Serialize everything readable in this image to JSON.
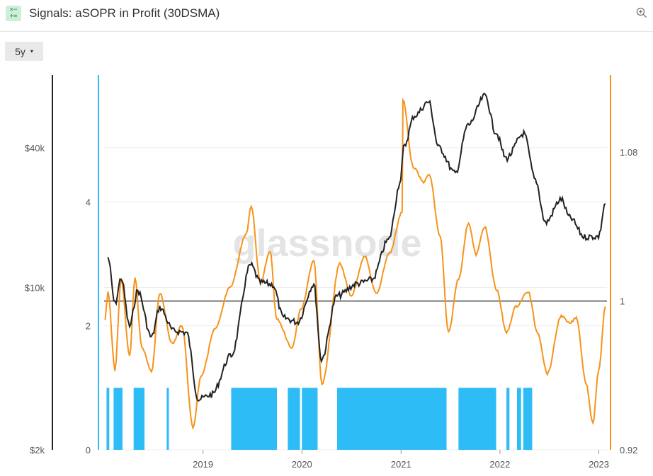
{
  "header": {
    "icon_glyphs": [
      "×−",
      "+="
    ],
    "title": "Signals: aSOPR in Profit (30DSMA)",
    "zoom_icon": "zoom-in-icon"
  },
  "controls": {
    "range_label": "5y",
    "caret": "▾"
  },
  "watermark": "glassnode",
  "colors": {
    "price": "#222222",
    "asopr": "#f7931a",
    "signal": "#2ebcf7",
    "price_axis": "#222222",
    "signal_axis": "#2ebcf7",
    "asopr_axis": "#f7931a",
    "baseline": "#777777"
  },
  "chart_data": {
    "type": "line",
    "x_ticks": [
      "2019",
      "2020",
      "2021",
      "2022",
      "2023"
    ],
    "x_range": [
      "2018-01-01",
      "2023-01-31"
    ],
    "y_axes": {
      "price": {
        "scale": "log",
        "range": [
          2000,
          80000
        ],
        "ticks": [
          "$2k",
          "$10k",
          "$40k"
        ]
      },
      "signal": {
        "scale": "linear",
        "range": [
          0,
          6
        ],
        "ticks": [
          "0",
          "2",
          "4"
        ]
      },
      "asopr": {
        "scale": "linear",
        "range": [
          0.92,
          1.12
        ],
        "ticks": [
          "0.92",
          "1",
          "1.08"
        ]
      }
    },
    "baseline": {
      "axis": "asopr",
      "value": 1
    },
    "series": [
      {
        "axis": "price",
        "points": [
          [
            "2018-01-15",
            13500
          ],
          [
            "2018-02-10",
            8500
          ],
          [
            "2018-03-05",
            11000
          ],
          [
            "2018-04-05",
            6800
          ],
          [
            "2018-05-05",
            9700
          ],
          [
            "2018-06-25",
            6100
          ],
          [
            "2018-07-25",
            8200
          ],
          [
            "2018-09-15",
            6500
          ],
          [
            "2018-11-01",
            6400
          ],
          [
            "2018-12-15",
            3300
          ],
          [
            "2019-02-01",
            3450
          ],
          [
            "2019-04-15",
            5100
          ],
          [
            "2019-06-26",
            12500
          ],
          [
            "2019-08-01",
            10500
          ],
          [
            "2019-09-15",
            10300
          ],
          [
            "2019-10-25",
            7400
          ],
          [
            "2019-12-15",
            7100
          ],
          [
            "2020-02-14",
            10300
          ],
          [
            "2020-03-13",
            4900
          ],
          [
            "2020-05-10",
            9200
          ],
          [
            "2020-07-25",
            10400
          ],
          [
            "2020-09-15",
            10800
          ],
          [
            "2020-11-15",
            16000
          ],
          [
            "2020-12-31",
            29000
          ],
          [
            "2021-01-10",
            40000
          ],
          [
            "2021-02-20",
            55000
          ],
          [
            "2021-04-13",
            63000
          ],
          [
            "2021-05-20",
            40000
          ],
          [
            "2021-07-20",
            31000
          ],
          [
            "2021-09-05",
            50000
          ],
          [
            "2021-11-08",
            67000
          ],
          [
            "2021-12-15",
            47000
          ],
          [
            "2022-01-24",
            36000
          ],
          [
            "2022-03-30",
            46000
          ],
          [
            "2022-05-12",
            29000
          ],
          [
            "2022-06-18",
            19000
          ],
          [
            "2022-08-15",
            24000
          ],
          [
            "2022-09-15",
            20000
          ],
          [
            "2022-11-10",
            16500
          ],
          [
            "2022-12-31",
            16600
          ],
          [
            "2023-01-25",
            23000
          ]
        ]
      },
      {
        "axis": "asopr",
        "points": [
          [
            "2018-01-05",
            0.99
          ],
          [
            "2018-01-15",
            1.005
          ],
          [
            "2018-02-10",
            0.963
          ],
          [
            "2018-03-05",
            1.012
          ],
          [
            "2018-04-05",
            0.97
          ],
          [
            "2018-04-25",
            1.012
          ],
          [
            "2018-05-20",
            0.975
          ],
          [
            "2018-06-25",
            0.962
          ],
          [
            "2018-07-25",
            1.004
          ],
          [
            "2018-09-10",
            0.977
          ],
          [
            "2018-10-15",
            0.987
          ],
          [
            "2018-11-25",
            0.932
          ],
          [
            "2018-12-25",
            0.96
          ],
          [
            "2019-02-15",
            0.985
          ],
          [
            "2019-04-10",
            1.007
          ],
          [
            "2019-06-10",
            1.036
          ],
          [
            "2019-06-28",
            1.051
          ],
          [
            "2019-08-01",
            1.01
          ],
          [
            "2019-09-05",
            1.027
          ],
          [
            "2019-10-01",
            0.99
          ],
          [
            "2019-11-25",
            0.975
          ],
          [
            "2019-12-30",
            0.996
          ],
          [
            "2020-02-14",
            1.022
          ],
          [
            "2020-03-15",
            0.955
          ],
          [
            "2020-05-20",
            1.02
          ],
          [
            "2020-07-01",
            1.003
          ],
          [
            "2020-08-20",
            1.024
          ],
          [
            "2020-10-01",
            1.004
          ],
          [
            "2020-11-20",
            1.026
          ],
          [
            "2021-01-05",
            1.048
          ],
          [
            "2021-01-08",
            1.108
          ],
          [
            "2021-02-15",
            1.072
          ],
          [
            "2021-03-25",
            1.064
          ],
          [
            "2021-04-15",
            1.068
          ],
          [
            "2021-05-25",
            1.035
          ],
          [
            "2021-06-25",
            0.983
          ],
          [
            "2021-08-01",
            1.012
          ],
          [
            "2021-09-07",
            1.042
          ],
          [
            "2021-10-05",
            1.025
          ],
          [
            "2021-11-05",
            1.04
          ],
          [
            "2021-12-20",
            1.006
          ],
          [
            "2022-01-25",
            0.983
          ],
          [
            "2022-03-01",
            0.997
          ],
          [
            "2022-04-15",
            1.005
          ],
          [
            "2022-05-20",
            0.983
          ],
          [
            "2022-06-25",
            0.961
          ],
          [
            "2022-08-15",
            0.992
          ],
          [
            "2022-09-15",
            0.988
          ],
          [
            "2022-10-10",
            0.991
          ],
          [
            "2022-11-15",
            0.956
          ],
          [
            "2022-12-10",
            0.934
          ],
          [
            "2022-12-31",
            0.962
          ],
          [
            "2023-01-25",
            0.997
          ]
        ]
      }
    ],
    "signal_periods": [
      [
        "2018-01-10",
        "2018-01-20"
      ],
      [
        "2018-02-05",
        "2018-03-10"
      ],
      [
        "2018-04-20",
        "2018-05-30"
      ],
      [
        "2018-08-20",
        "2018-08-28"
      ],
      [
        "2019-04-15",
        "2019-10-01"
      ],
      [
        "2019-11-10",
        "2019-12-25"
      ],
      [
        "2020-01-01",
        "2020-02-28"
      ],
      [
        "2020-05-10",
        "2021-06-18"
      ],
      [
        "2021-08-01",
        "2021-12-18"
      ],
      [
        "2022-01-25",
        "2022-02-05"
      ],
      [
        "2022-03-05",
        "2022-03-20"
      ],
      [
        "2022-03-28",
        "2022-04-30"
      ]
    ]
  }
}
